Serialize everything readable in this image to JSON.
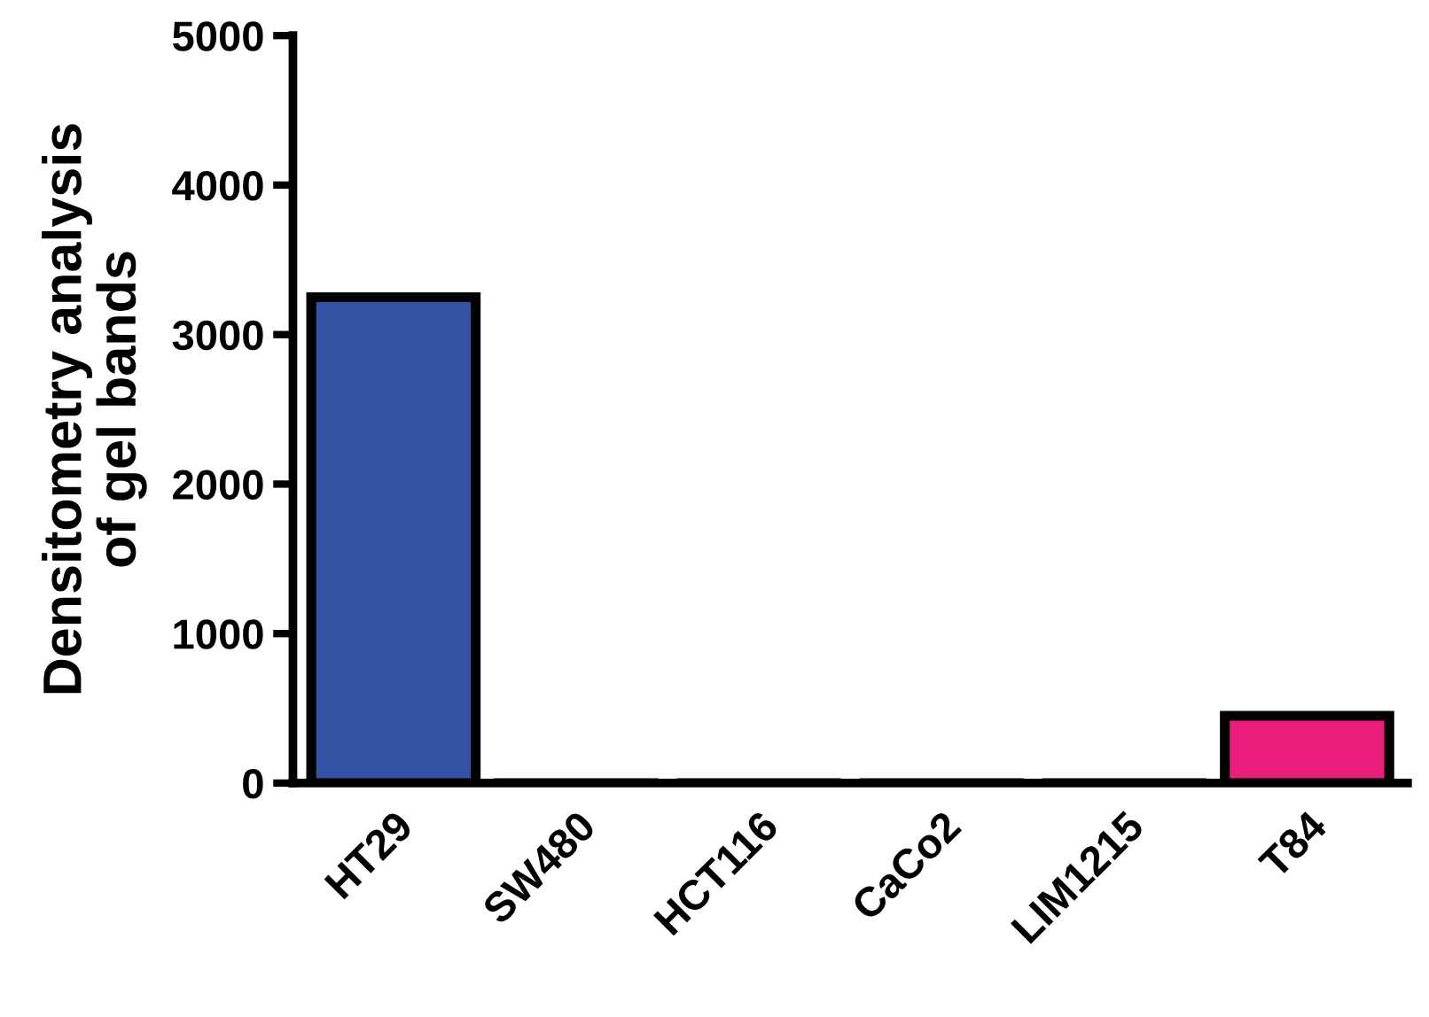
{
  "chart_data": {
    "type": "bar",
    "ylabel": "Densitometry analysis\nof gel bands",
    "categories": [
      "HT29",
      "SW480",
      "HCT116",
      "CaCo2",
      "LIM1215",
      "T84"
    ],
    "values": [
      3250,
      0,
      0,
      0,
      0,
      450
    ],
    "colors": [
      "#3352a3",
      "#3352a3",
      "#3352a3",
      "#3352a3",
      "#3352a3",
      "#e91e7a"
    ],
    "ylim": [
      0,
      5000
    ],
    "yticks": [
      0,
      1000,
      2000,
      3000,
      4000,
      5000
    ],
    "grid": false,
    "legend": false
  }
}
